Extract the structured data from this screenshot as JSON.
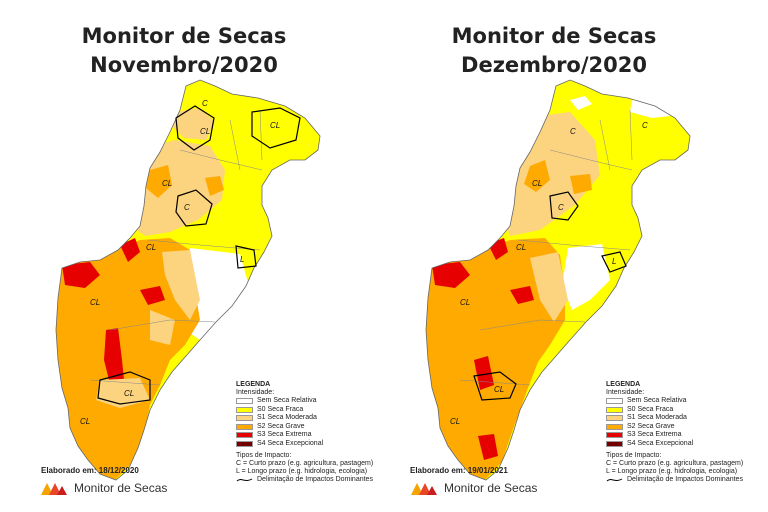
{
  "maps": [
    {
      "title_line1": "Monitor de Secas",
      "title_line2": "Novembro/2020",
      "credit": "Elaborado em: 18/12/2020"
    },
    {
      "title_line1": "Monitor de Secas",
      "title_line2": "Dezembro/2020",
      "credit": "Elaborado em: 19/01/2021"
    }
  ],
  "legend": {
    "heading": "LEGENDA",
    "intensity_heading": "Intensidade:",
    "classes": [
      {
        "label": "Sem Seca Relativa",
        "color": "#ffffff"
      },
      {
        "label": "S0 Seca Fraca",
        "color": "#ffff00"
      },
      {
        "label": "S1 Seca Moderada",
        "color": "#fcd37f"
      },
      {
        "label": "S2 Seca Grave",
        "color": "#ffaa00"
      },
      {
        "label": "S3 Seca Extrema",
        "color": "#e60000"
      },
      {
        "label": "S4 Seca Excepcional",
        "color": "#730000"
      }
    ],
    "impact_heading": "Tipos de Impacto:",
    "impact_short": "C = Curto prazo (e.g. agricultura, pastagem)",
    "impact_long": "L = Longo prazo (e.g. hidrologia, ecologia)",
    "impact_line": "Delimitação de Impactos Dominantes"
  },
  "map_labels": {
    "short": "C",
    "long": "L",
    "combined": "CL"
  },
  "brand": {
    "name": "Monitor de Secas",
    "logo": "monitor-de-secas-logo"
  }
}
